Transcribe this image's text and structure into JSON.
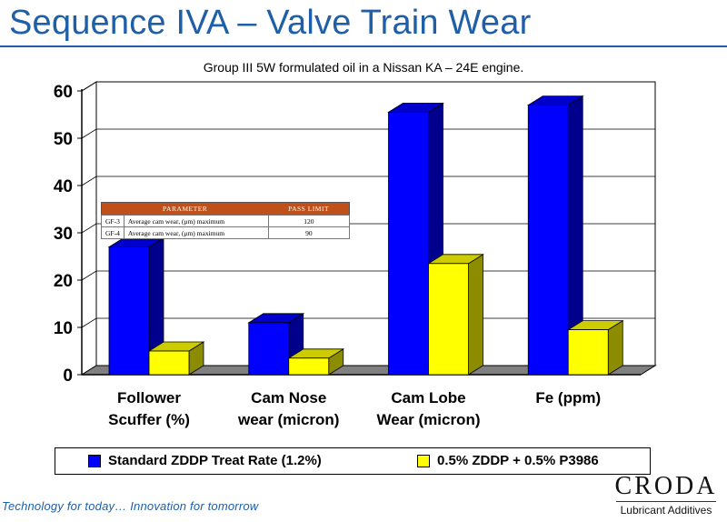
{
  "slide": {
    "title": "Sequence IVA – Valve Train Wear",
    "footer": "Technology for today… Innovation for tomorrow"
  },
  "logo": {
    "name": "CRODA",
    "subtitle": "Lubricant Additives"
  },
  "colors": {
    "title": "#1f5fa8",
    "series1": "#0000ff",
    "series2": "#ffff00",
    "table_header": "#c0501a"
  },
  "chart_data": {
    "type": "bar",
    "title": "Group III 5W formulated oil in a Nissan KA – 24E engine.",
    "categories": [
      [
        "Follower",
        "Scuffer (%)"
      ],
      [
        "Cam Nose",
        "wear (micron)"
      ],
      [
        "Cam Lobe",
        "Wear (micron)"
      ],
      [
        "Fe (ppm)"
      ]
    ],
    "series": [
      {
        "name": "Standard ZDDP Treat Rate (1.2%)",
        "values": [
          27,
          11,
          55.5,
          57
        ],
        "color": "#0000ff"
      },
      {
        "name": "0.5% ZDDP + 0.5% P3986",
        "values": [
          5,
          3.5,
          23.5,
          9.5
        ],
        "color": "#ffff00"
      }
    ],
    "ylim": [
      0,
      60
    ],
    "yticks": [
      "0",
      "10",
      "20",
      "30",
      "40",
      "50",
      "60"
    ],
    "xlabel": "",
    "ylabel": "",
    "grid": true,
    "legend": "bottom"
  },
  "param_table": {
    "headers": [
      "PARAMETER",
      "PASS LIMIT"
    ],
    "rows": [
      {
        "grade": "GF-3",
        "parameter": "Average cam wear, (μm) maximum",
        "limit": "120"
      },
      {
        "grade": "GF-4",
        "parameter": "Average cam wear, (μm) maximum",
        "limit": "90"
      }
    ]
  }
}
